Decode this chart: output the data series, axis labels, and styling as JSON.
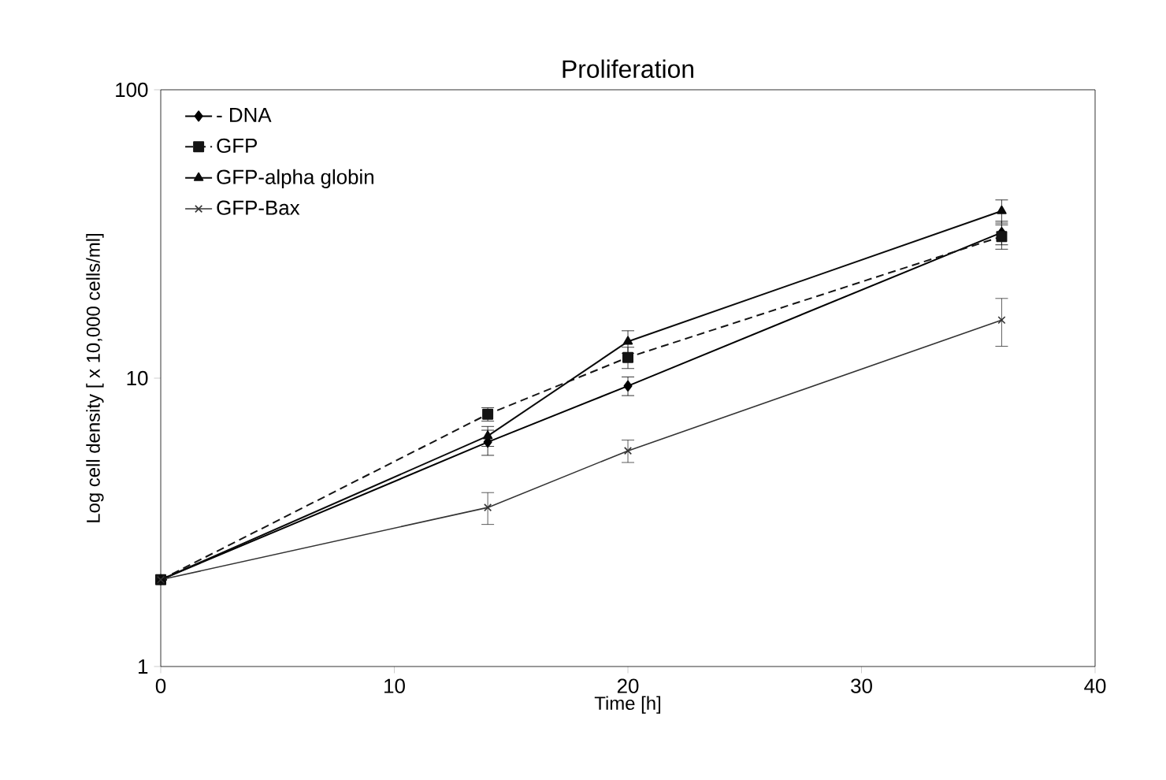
{
  "chart_data": {
    "type": "line",
    "title": "Proliferation",
    "xlabel": "Time [h]",
    "ylabel": "Log cell density [ x 10,000 cells/ml]",
    "x": [
      0,
      14,
      20,
      36
    ],
    "series": [
      {
        "name": "- DNA",
        "color": "#000000",
        "values": [
          2,
          6.0,
          9.4,
          32
        ],
        "errors": [
          null,
          0.6,
          0.7,
          3
        ],
        "marker": "diamond",
        "line_style": "solid"
      },
      {
        "name": "GFP",
        "color": "#141414",
        "values": [
          2,
          7.5,
          11.8,
          31
        ],
        "errors": [
          null,
          0.4,
          1,
          3
        ],
        "marker": "square",
        "line_style": "dashed"
      },
      {
        "name": "GFP-alpha globin",
        "color": "#0a0a0a",
        "values": [
          2,
          6.3,
          13.4,
          38
        ],
        "errors": [
          null,
          0.5,
          1.2,
          3.5
        ],
        "marker": "triangle",
        "line_style": "solid"
      },
      {
        "name": "GFP-Bax",
        "color": "#333333",
        "values": [
          2,
          3.56,
          5.6,
          15.9
        ],
        "errors": [
          null,
          0.45,
          0.5,
          3
        ],
        "marker": "cross",
        "line_style": "solid"
      }
    ],
    "xlim": [
      0,
      40
    ],
    "ylim": [
      1,
      100
    ],
    "xticks": [
      0,
      10,
      20,
      30,
      40
    ],
    "yticks": [
      1,
      10,
      100
    ],
    "log": "y",
    "grid": false,
    "legend": "top left"
  }
}
